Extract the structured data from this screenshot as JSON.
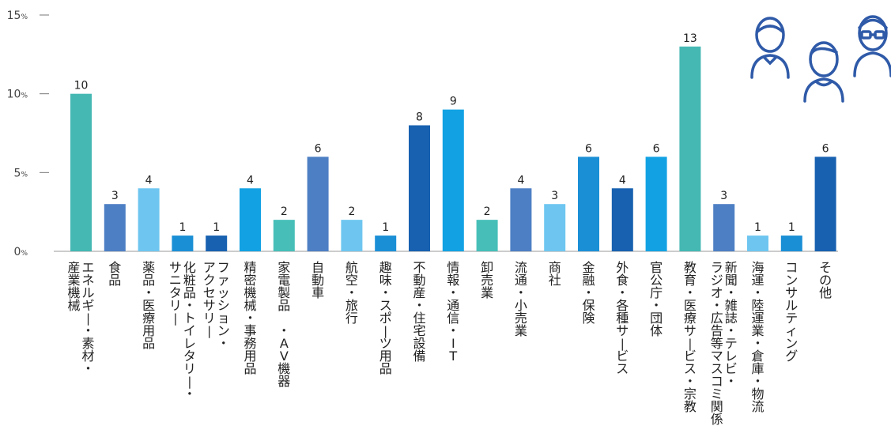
{
  "chart_data": {
    "type": "bar",
    "y_ticks": [
      {
        "value": 0,
        "num": "0",
        "unit": "%"
      },
      {
        "value": 5,
        "num": "5",
        "unit": "%"
      },
      {
        "value": 10,
        "num": "10",
        "unit": "%"
      },
      {
        "value": 15,
        "num": "15",
        "unit": "%"
      }
    ],
    "ylim": [
      0,
      15
    ],
    "grid": false,
    "categories": [
      {
        "lines": [
          "エネルギー・素材・",
          "産業機械"
        ],
        "value": 10,
        "color": "#45b8b3"
      },
      {
        "lines": [
          "食品"
        ],
        "value": 3,
        "color": "#4d7fc4"
      },
      {
        "lines": [
          "薬品・医療用品"
        ],
        "value": 4,
        "color": "#6ec6f0"
      },
      {
        "lines": [
          "化粧品・トイレタリー・",
          "サニタリー"
        ],
        "value": 1,
        "color": "#1b8fd6"
      },
      {
        "lines": [
          "ファッション・",
          "アクセサリー"
        ],
        "value": 1,
        "color": "#1761b0"
      },
      {
        "lines": [
          "精密機械・事務用品"
        ],
        "value": 4,
        "color": "#12a2e3"
      },
      {
        "lines": [
          "家電製品 ・AV機器"
        ],
        "value": 2,
        "color": "#47bfb8"
      },
      {
        "lines": [
          "自動車"
        ],
        "value": 6,
        "color": "#4d7fc4"
      },
      {
        "lines": [
          "航空・旅行"
        ],
        "value": 2,
        "color": "#6ec6f0"
      },
      {
        "lines": [
          "趣味・スポーツ用品"
        ],
        "value": 1,
        "color": "#1b8fd6"
      },
      {
        "lines": [
          "不動産・住宅設備"
        ],
        "value": 8,
        "color": "#1761b0"
      },
      {
        "lines": [
          "情報・通信・IT"
        ],
        "value": 9,
        "color": "#12a2e3"
      },
      {
        "lines": [
          "卸売業"
        ],
        "value": 2,
        "color": "#47bfb8"
      },
      {
        "lines": [
          "流通・小売業"
        ],
        "value": 4,
        "color": "#4d7fc4"
      },
      {
        "lines": [
          "商社"
        ],
        "value": 3,
        "color": "#6ec6f0"
      },
      {
        "lines": [
          "金融・保険"
        ],
        "value": 6,
        "color": "#1b8fd6"
      },
      {
        "lines": [
          "外食・各種サービス"
        ],
        "value": 4,
        "color": "#1761b0"
      },
      {
        "lines": [
          "官公庁・団体"
        ],
        "value": 6,
        "color": "#12a2e3"
      },
      {
        "lines": [
          "教育・医療サービス・宗教"
        ],
        "value": 13,
        "color": "#45b8b3"
      },
      {
        "lines": [
          "新聞・雑誌・テレビ・",
          "ラジオ・広告等マスコミ関係"
        ],
        "value": 3,
        "color": "#4d7fc4"
      },
      {
        "lines": [
          "海運・陸運業・倉庫・物流"
        ],
        "value": 1,
        "color": "#6ec6f0"
      },
      {
        "lines": [
          "コンサルティング"
        ],
        "value": 1,
        "color": "#1b8fd6"
      },
      {
        "lines": [
          "その他"
        ],
        "value": 6,
        "color": "#1761b0"
      }
    ]
  },
  "decoration": {
    "icon_name": "people-icon",
    "icon_color": "#2f5aa8"
  }
}
